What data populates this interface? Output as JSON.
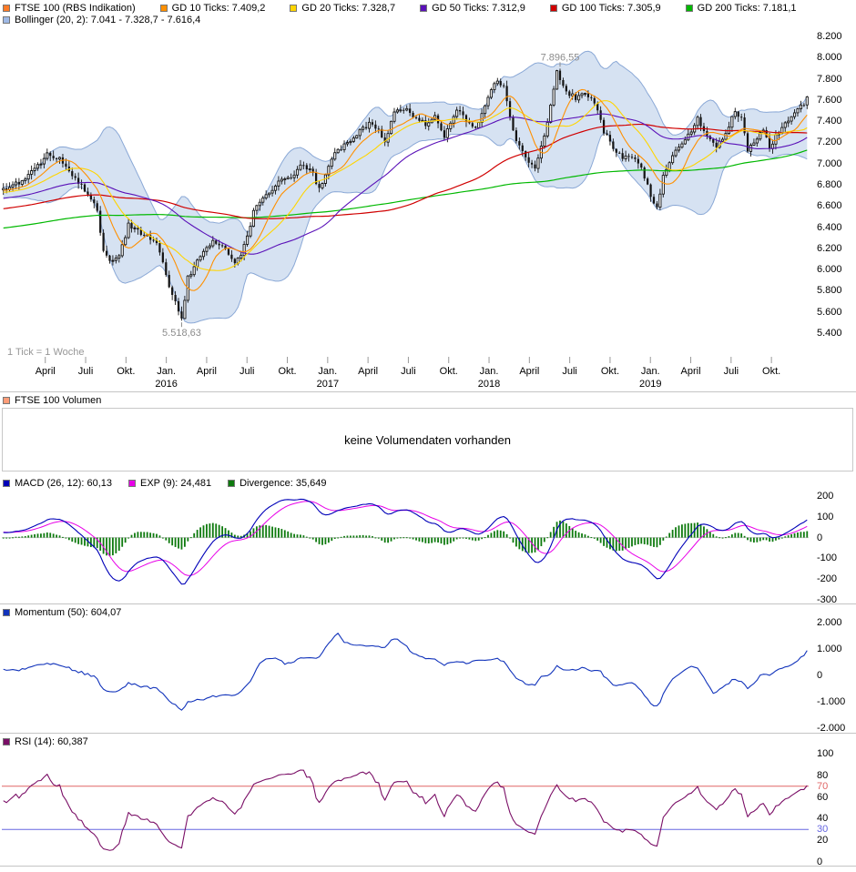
{
  "legends": {
    "main_row1": [
      {
        "name": "ftse-series",
        "label": "FTSE 100 (RBS Indikation)",
        "color": "#FF7A26"
      },
      {
        "name": "gd10",
        "label": "GD 10 Ticks: 7.409,2",
        "color": "#FF9000"
      },
      {
        "name": "gd20",
        "label": "GD 20 Ticks: 7.328,7",
        "color": "#FFD500"
      },
      {
        "name": "gd50",
        "label": "GD 50 Ticks: 7.312,9",
        "color": "#5A11B8"
      },
      {
        "name": "gd100",
        "label": "GD 100 Ticks: 7.305,9",
        "color": "#D00000"
      },
      {
        "name": "gd200",
        "label": "GD 200 Ticks: 7.181,1",
        "color": "#00B800"
      }
    ],
    "main_row2": [
      {
        "name": "bollinger",
        "label": "Bollinger (20, 2): 7.041 - 7.328,7 - 7.616,4",
        "color": "#9FB9E6"
      }
    ],
    "volume": [
      {
        "name": "volume-series",
        "label": "FTSE 100 Volumen",
        "color": "#FF9C78"
      }
    ],
    "macd": [
      {
        "name": "macd-line",
        "label": "MACD (26, 12): 60,13",
        "color": "#0000B8"
      },
      {
        "name": "exp-line",
        "label": "EXP (9): 24,481",
        "color": "#E800E8"
      },
      {
        "name": "divergence-bars",
        "label": "Divergence: 35,649",
        "color": "#0E7A0E"
      }
    ],
    "momentum": [
      {
        "name": "momentum-line",
        "label": "Momentum (50): 604,07",
        "color": "#1133BB"
      }
    ],
    "rsi": [
      {
        "name": "rsi-line",
        "label": "RSI (14): 60,387",
        "color": "#7A0E66"
      }
    ]
  },
  "volume_panel": {
    "message": "keine Volumendaten vorhanden"
  },
  "chart_data": [
    {
      "type": "candlestick",
      "title": "FTSE 100 (RBS Indikation), weekly candles with GD/Bollinger overlays",
      "tick_note": "1 Tick = 1 Woche",
      "weeks": 258,
      "ylim": [
        5400,
        8200
      ],
      "y_ticks": [
        {
          "v": 8200,
          "label": "8.200"
        },
        {
          "v": 8000,
          "label": "8.000"
        },
        {
          "v": 7800,
          "label": "7.800"
        },
        {
          "v": 7600,
          "label": "7.600"
        },
        {
          "v": 7400,
          "label": "7.400"
        },
        {
          "v": 7200,
          "label": "7.200"
        },
        {
          "v": 7000,
          "label": "7.000"
        },
        {
          "v": 6800,
          "label": "6.800"
        },
        {
          "v": 6600,
          "label": "6.600"
        },
        {
          "v": 6400,
          "label": "6.400"
        },
        {
          "v": 6200,
          "label": "6.200"
        },
        {
          "v": 6000,
          "label": "6.000"
        },
        {
          "v": 5800,
          "label": "5.800"
        },
        {
          "v": 5600,
          "label": "5.600"
        },
        {
          "v": 5400,
          "label": "5.400"
        }
      ],
      "x_ticks": [
        {
          "label": "April",
          "week": 13.9
        },
        {
          "label": "Juli",
          "week": 26.8
        },
        {
          "label": "Okt.",
          "week": 39.7
        },
        {
          "label": "Jan.",
          "week": 52.6,
          "year": "2016"
        },
        {
          "label": "April",
          "week": 65.5
        },
        {
          "label": "Juli",
          "week": 78.4
        },
        {
          "label": "Okt.",
          "week": 91.3
        },
        {
          "label": "Jan.",
          "week": 104.2,
          "year": "2017"
        },
        {
          "label": "April",
          "week": 117.1
        },
        {
          "label": "Juli",
          "week": 130.0
        },
        {
          "label": "Okt.",
          "week": 142.9
        },
        {
          "label": "Jan.",
          "week": 155.8,
          "year": "2018"
        },
        {
          "label": "April",
          "week": 168.7
        },
        {
          "label": "Juli",
          "week": 181.6
        },
        {
          "label": "Okt.",
          "week": 194.5
        },
        {
          "label": "Jan.",
          "week": 207.4,
          "year": "2019"
        },
        {
          "label": "April",
          "week": 220.3
        },
        {
          "label": "Juli",
          "week": 233.2
        },
        {
          "label": "Okt.",
          "week": 246.1
        }
      ],
      "close_keypoints": [
        [
          0,
          6760
        ],
        [
          5,
          6820
        ],
        [
          10,
          6950
        ],
        [
          14,
          7080
        ],
        [
          18,
          7040
        ],
        [
          22,
          6880
        ],
        [
          27,
          6720
        ],
        [
          30,
          6550
        ],
        [
          32,
          6170
        ],
        [
          34,
          6080
        ],
        [
          37,
          6130
        ],
        [
          40,
          6420
        ],
        [
          43,
          6360
        ],
        [
          46,
          6330
        ],
        [
          49,
          6240
        ],
        [
          52,
          5950
        ],
        [
          54,
          5750
        ],
        [
          57,
          5540
        ],
        [
          59,
          5920
        ],
        [
          63,
          6130
        ],
        [
          67,
          6280
        ],
        [
          71,
          6200
        ],
        [
          74,
          6080
        ],
        [
          76,
          6150
        ],
        [
          78,
          6300
        ],
        [
          80,
          6550
        ],
        [
          83,
          6690
        ],
        [
          88,
          6820
        ],
        [
          92,
          6880
        ],
        [
          96,
          7000
        ],
        [
          99,
          6900
        ],
        [
          101,
          6750
        ],
        [
          105,
          7050
        ],
        [
          109,
          7180
        ],
        [
          113,
          7280
        ],
        [
          117,
          7370
        ],
        [
          120,
          7310
        ],
        [
          122,
          7200
        ],
        [
          125,
          7480
        ],
        [
          129,
          7530
        ],
        [
          132,
          7420
        ],
        [
          135,
          7370
        ],
        [
          138,
          7440
        ],
        [
          141,
          7250
        ],
        [
          145,
          7520
        ],
        [
          148,
          7400
        ],
        [
          151,
          7330
        ],
        [
          154,
          7560
        ],
        [
          157,
          7770
        ],
        [
          160,
          7730
        ],
        [
          162,
          7450
        ],
        [
          164,
          7200
        ],
        [
          167,
          7050
        ],
        [
          170,
          6950
        ],
        [
          173,
          7260
        ],
        [
          175,
          7560
        ],
        [
          177,
          7870
        ],
        [
          180,
          7680
        ],
        [
          183,
          7620
        ],
        [
          186,
          7660
        ],
        [
          189,
          7580
        ],
        [
          192,
          7300
        ],
        [
          195,
          7150
        ],
        [
          198,
          7050
        ],
        [
          201,
          7060
        ],
        [
          204,
          6950
        ],
        [
          207,
          6700
        ],
        [
          209,
          6580
        ],
        [
          211,
          6870
        ],
        [
          214,
          7080
        ],
        [
          218,
          7220
        ],
        [
          222,
          7420
        ],
        [
          225,
          7280
        ],
        [
          228,
          7160
        ],
        [
          231,
          7280
        ],
        [
          234,
          7500
        ],
        [
          236,
          7420
        ],
        [
          238,
          7120
        ],
        [
          240,
          7200
        ],
        [
          243,
          7320
        ],
        [
          245,
          7140
        ],
        [
          247,
          7260
        ],
        [
          250,
          7380
        ],
        [
          253,
          7480
        ],
        [
          256,
          7560
        ],
        [
          257,
          7610
        ]
      ],
      "annotations": [
        {
          "text": "7.896,55",
          "value": 7896.55,
          "week": 177,
          "type": "high"
        },
        {
          "text": "5.518,63",
          "value": 5518.63,
          "week": 57,
          "type": "low"
        }
      ],
      "overlays": [
        {
          "name": "GD 10",
          "window": 10,
          "color": "#FF9000",
          "last": "7.409,2"
        },
        {
          "name": "GD 20",
          "window": 20,
          "color": "#FFD500",
          "last": "7.328,7"
        },
        {
          "name": "GD 50",
          "window": 50,
          "color": "#5A11B8",
          "last": "7.312,9"
        },
        {
          "name": "GD 100",
          "window": 100,
          "color": "#D00000",
          "last": "7.305,9"
        },
        {
          "name": "GD 200",
          "window": 200,
          "color": "#00B800",
          "last": "7.181,1"
        },
        {
          "name": "Bollinger",
          "window": 20,
          "mult": 2,
          "color": "#9FB9E6",
          "last": "7.041 - 7.328,7 - 7.616,4"
        }
      ]
    },
    {
      "type": "line",
      "name": "MACD",
      "params": "26, 12",
      "ylim": [
        -300,
        200
      ],
      "y_ticks": [
        {
          "v": 200,
          "label": "200"
        },
        {
          "v": 100,
          "label": "100"
        },
        {
          "v": 0,
          "label": "0"
        },
        {
          "v": -100,
          "label": "-100"
        },
        {
          "v": -200,
          "label": "-200"
        },
        {
          "v": -300,
          "label": "-300"
        }
      ],
      "colors": {
        "macd": "#0000B8",
        "exp": "#E800E8",
        "divergence": "#0E7A0E"
      },
      "last": {
        "macd": "60,13",
        "exp": "24,481",
        "divergence": "35,649"
      }
    },
    {
      "type": "line",
      "name": "Momentum",
      "params": "50",
      "ylim": [
        -2000,
        2000
      ],
      "y_ticks": [
        {
          "v": 2000,
          "label": "2.000"
        },
        {
          "v": 1000,
          "label": "1.000"
        },
        {
          "v": 0,
          "label": "0"
        },
        {
          "v": -1000,
          "label": "-1.000"
        },
        {
          "v": -2000,
          "label": "-2.000"
        }
      ],
      "color": "#1133BB",
      "last": "604,07"
    },
    {
      "type": "line",
      "name": "RSI",
      "params": "14",
      "ylim": [
        0,
        100
      ],
      "y_ticks": [
        {
          "v": 100,
          "label": "100"
        },
        {
          "v": 80,
          "label": "80"
        },
        {
          "v": 60,
          "label": "60"
        },
        {
          "v": 40,
          "label": "40"
        },
        {
          "v": 20,
          "label": "20"
        },
        {
          "v": 0,
          "label": "0"
        }
      ],
      "hlines": [
        {
          "v": 70,
          "label": "70",
          "color": "#E06666"
        },
        {
          "v": 30,
          "label": "30",
          "color": "#6666E0"
        }
      ],
      "color": "#7A0E66",
      "last": "60,387"
    }
  ]
}
